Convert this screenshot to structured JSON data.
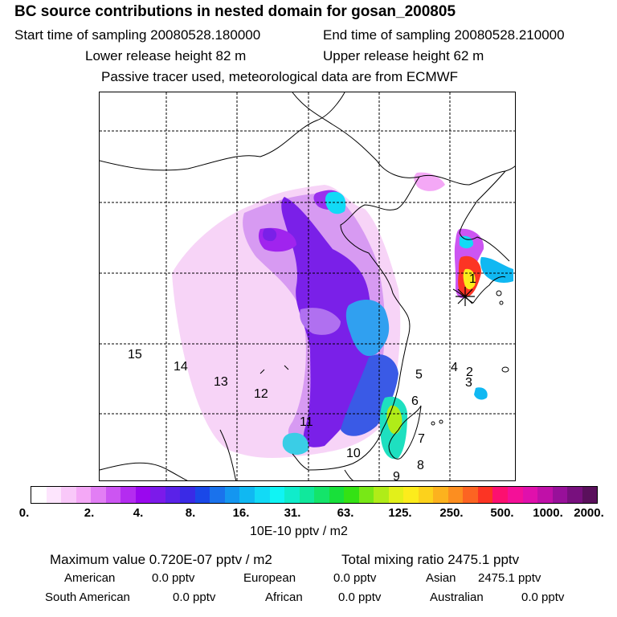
{
  "header": {
    "title": "BC  source contributions in nested domain for gosan_200805",
    "start_time": "Start time of sampling 20080528.180000",
    "end_time": "End time of sampling 20080528.210000",
    "lower_height": "Lower release height   82 m",
    "upper_height": "Upper release height   62 m",
    "tracer_note": "Passive tracer used, meteorological data are from ECMWF"
  },
  "map": {
    "region_labels": [
      "1",
      "2",
      "3",
      "4",
      "5",
      "6",
      "7",
      "8",
      "9",
      "10",
      "11",
      "12",
      "13",
      "14",
      "15"
    ],
    "receptor_marker": "star-icon",
    "colors": {
      "coast": "#000000",
      "grid": "#000000"
    }
  },
  "colorbar": {
    "tick_labels": [
      "0.",
      "2.",
      "4.",
      "8.",
      "16.",
      "31.",
      "63.",
      "125.",
      "250.",
      "500.",
      "1000.",
      "2000."
    ],
    "unit_label": "10E-10 pptv / m2",
    "swatches": [
      "#ffffff",
      "#fde5fd",
      "#f9c8f9",
      "#f4a8f6",
      "#e27ef4",
      "#cc55f2",
      "#b42cf0",
      "#9a08ee",
      "#7c1aea",
      "#5a22e8",
      "#3a2ae6",
      "#1a48e8",
      "#1a72ec",
      "#1496f0",
      "#10b8f2",
      "#12daf6",
      "#10f4f4",
      "#10eccb",
      "#10e89c",
      "#14e46a",
      "#18e03a",
      "#34e214",
      "#78e816",
      "#b0ec18",
      "#e2f01a",
      "#fcec1c",
      "#fcd21c",
      "#fcb21e",
      "#fc8e20",
      "#fc6422",
      "#fc3424",
      "#fc1070",
      "#f41098",
      "#e010ac",
      "#c010a8",
      "#98109a",
      "#78107e",
      "#5a105c"
    ]
  },
  "footer": {
    "max_value": "Maximum value  0.720E-07 pptv / m2",
    "total_mixing": "Total mixing ratio     2475.1 pptv",
    "american": "American",
    "american_val": "0.0 pptv",
    "european": "European",
    "european_val": "0.0 pptv",
    "asian": "Asian",
    "asian_val": "2475.1 pptv",
    "south_american": "South American",
    "south_american_val": "0.0 pptv",
    "african": "African",
    "african_val": "0.0 pptv",
    "australian": "Australian",
    "australian_val": "0.0 pptv"
  }
}
